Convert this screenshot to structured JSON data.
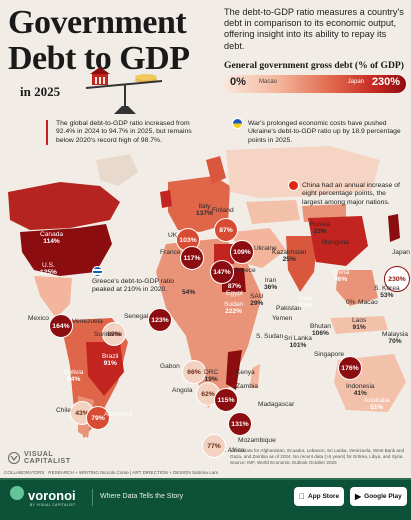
{
  "header": {
    "title_line1": "Government",
    "title_line2": "Debt to GDP",
    "year": "in 2025",
    "subtitle": "The debt-to-GDP ratio measures a country's debt in comparison to its economic output, offering insight into its ability to repay its debt.",
    "legend_title": "General government gross debt (% of GDP)",
    "legend_min_value": "0%",
    "legend_min_country": "Macao",
    "legend_max_value": "230%",
    "legend_max_country": "Japan"
  },
  "callouts": {
    "global": "The global debt-to-GDP ratio increased from 92.4% in 2024 to 94.7% in 2025, but remains below 2020's record high of 98.7%.",
    "ukraine": "War's prolonged economic costs have pushed Ukraine's debt-to-GDP ratio up by 18.9 percentage points in 2025.",
    "china": "China had an annual increase of eight percentage points, the largest among major nations.",
    "greece": "Greece's debt-to-GDP ratio peaked at 210% in 2020."
  },
  "countries": [
    {
      "name": "Canada",
      "value": "114%"
    },
    {
      "name": "U.S.",
      "value": "125%"
    },
    {
      "name": "Mexico",
      "value": ""
    },
    {
      "name": "Venezuela",
      "value": "164%"
    },
    {
      "name": "Suriname",
      "value": "89%"
    },
    {
      "name": "Brazil",
      "value": "91%"
    },
    {
      "name": "Bolivia",
      "value": "94%"
    },
    {
      "name": "Chile",
      "value": "43%"
    },
    {
      "name": "Argentina",
      "value": "79%"
    },
    {
      "name": "UK",
      "value": "103%"
    },
    {
      "name": "France",
      "value": "117%"
    },
    {
      "name": "Italy",
      "value": "137%"
    },
    {
      "name": "Finland",
      "value": "87%"
    },
    {
      "name": "Ukraine",
      "value": "109%"
    },
    {
      "name": "Greece",
      "value": "147%"
    },
    {
      "name": "Russia",
      "value": "23%"
    },
    {
      "name": "Kazakhstan",
      "value": "25%"
    },
    {
      "name": "Mongolia",
      "value": ""
    },
    {
      "name": "Iran",
      "value": "36%"
    },
    {
      "name": "SAU",
      "value": "29%"
    },
    {
      "name": "Pakistan",
      "value": ""
    },
    {
      "name": "Yemen",
      "value": ""
    },
    {
      "name": "Egypt",
      "value": "87%"
    },
    {
      "name": "Sudan",
      "value": "222%"
    },
    {
      "name": "S. Sudan",
      "value": ""
    },
    {
      "name": "India",
      "value": "81%"
    },
    {
      "name": "Sri Lanka",
      "value": "101%"
    },
    {
      "name": "China",
      "value": "96%"
    },
    {
      "name": "Macao",
      "value": "0%"
    },
    {
      "name": "Japan",
      "value": "230%"
    },
    {
      "name": "S. Korea",
      "value": "53%"
    },
    {
      "name": "Laos",
      "value": "91%"
    },
    {
      "name": "Bhutan",
      "value": "106%"
    },
    {
      "name": "Singapore",
      "value": "176%"
    },
    {
      "name": "Malaysia",
      "value": "70%"
    },
    {
      "name": "Indonesia",
      "value": "41%"
    },
    {
      "name": "Australia",
      "value": "51%"
    },
    {
      "name": "Senegal",
      "value": "123%"
    },
    {
      "name": "Gabon",
      "value": "66%"
    },
    {
      "name": "DRC",
      "value": "19%"
    },
    {
      "name": "Kenya",
      "value": ""
    },
    {
      "name": "Angola",
      "value": "62%"
    },
    {
      "name": "Zambia",
      "value": "115%"
    },
    {
      "name": "Mozambique",
      "value": "131%"
    },
    {
      "name": "Madagascar",
      "value": ""
    },
    {
      "name": "S. Africa",
      "value": "77%"
    },
    {
      "name": "Algeria",
      "value": "54%"
    }
  ],
  "footer": {
    "footnote": "Latest data for Afghanistan, Ecuador, Lebanon, Sri Lanka, Venezuela, West Bank and Gaza, and Zambia as of 2024. No recent data (>5 years) for Eritrea, Libya, and Syria. Source: IMF, World Economic Outlook October 2025",
    "collaborators": "COLLABORATORS",
    "credits": "RESEARCH + WRITING Niccolo Conte | ART DIRECTION + DESIGN Sabrina Lam",
    "brand_line1": "VISUAL",
    "brand_line2": "CAPITALIST",
    "voronoi": "voronoi",
    "voronoi_sub": "BY VISUAL CAPITALIST",
    "tagline": "Where Data Tells the Story",
    "app_store": "App Store",
    "google_play": "Google Play"
  },
  "colors": {
    "background": "#f1ede6",
    "lightest": "#fbe6dc",
    "light": "#f3b59b",
    "mid": "#e0664a",
    "dark": "#c2241f",
    "darkest": "#8c0d10",
    "footer": "#0d5238"
  }
}
